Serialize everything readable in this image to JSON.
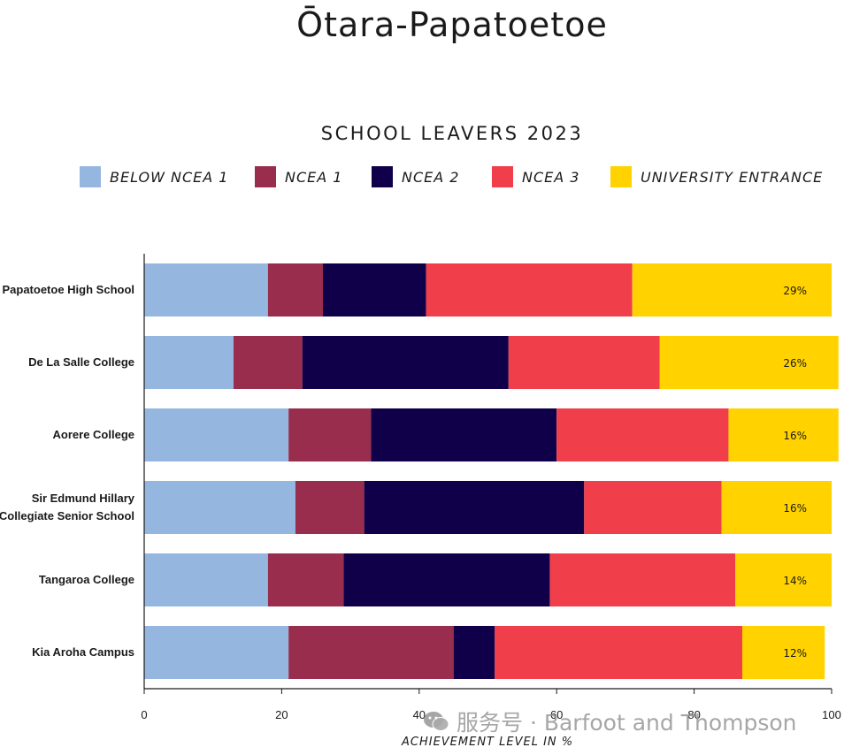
{
  "header": {
    "title": "Ōtara-Papatoetoe"
  },
  "watermark": {
    "text": "服务号 · Barfoot and Thompson",
    "icon": "wechat-icon"
  },
  "colors": {
    "below_ncea1": "#95b6df",
    "ncea1": "#982d4d",
    "ncea2": "#10004a",
    "ncea3": "#f03e4b",
    "ue": "#ffd200",
    "axis": "#1a1a1a"
  },
  "chart_data": {
    "type": "bar",
    "orientation": "horizontal",
    "stacked": true,
    "title": "SCHOOL LEAVERS 2023",
    "xlabel": "ACHIEVEMENT LEVEL IN %",
    "ylabel": "",
    "xlim": [
      0,
      100
    ],
    "xticks": [
      "0",
      "20",
      "40",
      "60",
      "80",
      "100"
    ],
    "grid": false,
    "legend_position": "top",
    "categories": [
      [
        "Papatoetoe High School"
      ],
      [
        "De La Salle College"
      ],
      [
        "Aorere College"
      ],
      [
        "Sir Edmund Hillary",
        "Collegiate Senior School"
      ],
      [
        "Tangaroa College"
      ],
      [
        "Kia Aroha Campus"
      ]
    ],
    "series": [
      {
        "name": "BELOW NCEA 1",
        "color": "#95b6df",
        "values": [
          18,
          13,
          21,
          22,
          18,
          21
        ]
      },
      {
        "name": "NCEA 1",
        "color": "#982d4d",
        "values": [
          8,
          10,
          12,
          10,
          11,
          24
        ]
      },
      {
        "name": "NCEA 2",
        "color": "#10004a",
        "values": [
          15,
          30,
          27,
          32,
          30,
          6
        ]
      },
      {
        "name": "NCEA 3",
        "color": "#f03e4b",
        "values": [
          30,
          22,
          25,
          20,
          27,
          36
        ]
      },
      {
        "name": "UNIVERSITY ENTRANCE",
        "color": "#ffd200",
        "values": [
          29,
          26,
          16,
          16,
          14,
          12
        ]
      }
    ],
    "data_labels": [
      "29%",
      "26%",
      "16%",
      "16%",
      "14%",
      "12%"
    ]
  }
}
